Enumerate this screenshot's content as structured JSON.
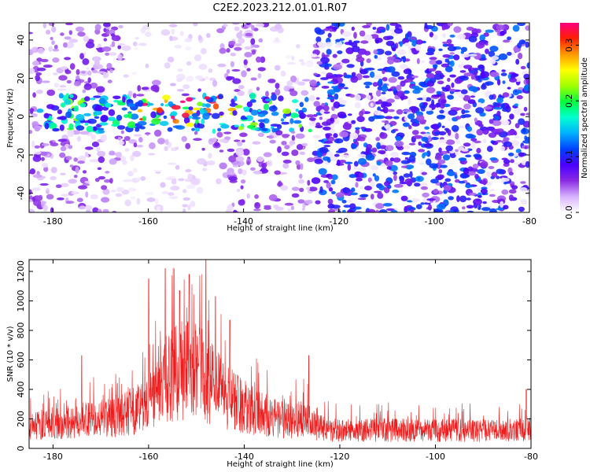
{
  "title": "C2E2.2023.212.01.01.R07",
  "colors": {
    "snr_line": "#ee1c1c",
    "axes": "#000000"
  },
  "chart_data": [
    {
      "type": "heatmap",
      "xlabel": "Height of straight line (km)",
      "ylabel": "Frequency (Hz)",
      "xlim": [
        -185,
        -80
      ],
      "ylim": [
        -50,
        49
      ],
      "x_ticks": [
        "-180",
        "-160",
        "-140",
        "-120",
        "-100",
        "-80"
      ],
      "y_ticks": [
        "40",
        "20",
        "0",
        "-20",
        "-40"
      ],
      "grid": false,
      "colorbar": {
        "label": "Normalized spectral amplitude",
        "range": [
          0.0,
          0.34
        ],
        "ticks": [
          "0.0",
          "0.1",
          "0.2",
          "0.3"
        ],
        "stops": [
          "#ffffff",
          "#d8b4ff",
          "#8a2be2",
          "#4b00ff",
          "#0040ff",
          "#00b0ff",
          "#00ffd0",
          "#00ff40",
          "#a0ff00",
          "#ffff00",
          "#ff9900",
          "#ff2000",
          "#ff0080"
        ]
      },
      "features": [
        {
          "description_value": "band",
          "x_range": [
            -183,
            -126
          ],
          "frequency_range": [
            -6,
            9
          ],
          "peak_amplitude": 0.34
        }
      ]
    },
    {
      "type": "line",
      "xlabel": "Height of straight line (km)",
      "ylabel": "SNR (10 * v/v)",
      "xlim": [
        -185,
        -80
      ],
      "ylim": [
        0,
        1280
      ],
      "x_ticks": [
        "-180",
        "-160",
        "-140",
        "-120",
        "-100",
        "-80"
      ],
      "y_ticks": [
        "0",
        "200",
        "400",
        "600",
        "800",
        "1000",
        "1200"
      ],
      "grid": false,
      "envelope_x": [
        -185,
        -180,
        -175,
        -170,
        -165,
        -160,
        -157,
        -155,
        -152,
        -150,
        -148,
        -146,
        -144,
        -142,
        -140,
        -135,
        -130,
        -127,
        -125,
        -120,
        -110,
        -100,
        -90,
        -80
      ],
      "envelope_y": [
        150,
        170,
        190,
        200,
        230,
        300,
        450,
        500,
        530,
        520,
        480,
        420,
        350,
        320,
        280,
        220,
        180,
        210,
        140,
        120,
        125,
        120,
        125,
        120
      ],
      "peaks_x": [
        -174,
        -160,
        -156.5,
        -153.5,
        -151.5,
        -148,
        -146,
        -143,
        -126.5,
        -81
      ],
      "peaks_y": [
        630,
        1150,
        1220,
        1070,
        1180,
        1280,
        1030,
        870,
        630,
        400
      ]
    }
  ]
}
